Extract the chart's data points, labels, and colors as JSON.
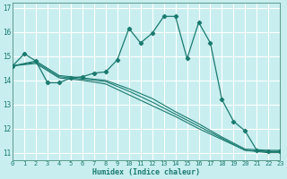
{
  "xlabel": "Humidex (Indice chaleur)",
  "bg_color": "#c8eef0",
  "grid_color": "#ffffff",
  "line_color": "#1a7a6e",
  "xlim": [
    0,
    23
  ],
  "ylim": [
    10.7,
    17.2
  ],
  "xticks": [
    0,
    1,
    2,
    3,
    4,
    5,
    6,
    7,
    8,
    9,
    10,
    11,
    12,
    13,
    14,
    15,
    16,
    17,
    18,
    19,
    20,
    21,
    22,
    23
  ],
  "yticks": [
    11,
    12,
    13,
    14,
    15,
    16,
    17
  ],
  "main_line": {
    "x": [
      0,
      1,
      2,
      3,
      4,
      5,
      6,
      7,
      8,
      9,
      10,
      11,
      12,
      13,
      14,
      15,
      16,
      17,
      18,
      19,
      20,
      21,
      22,
      23
    ],
    "y": [
      14.6,
      15.1,
      14.8,
      13.9,
      13.9,
      14.1,
      14.15,
      14.3,
      14.35,
      14.85,
      16.15,
      15.55,
      15.95,
      16.65,
      16.65,
      14.9,
      16.4,
      15.55,
      13.2,
      12.3,
      11.9,
      11.1,
      11.05,
      11.05
    ]
  },
  "side_lines": [
    {
      "x": [
        0,
        2,
        4,
        6,
        8,
        10,
        12,
        14,
        16,
        18,
        20,
        22,
        23
      ],
      "y": [
        14.6,
        14.7,
        14.1,
        14.0,
        13.85,
        13.4,
        12.95,
        12.5,
        12.0,
        11.55,
        11.1,
        11.0,
        11.0
      ]
    },
    {
      "x": [
        0,
        2,
        4,
        6,
        8,
        10,
        12,
        14,
        16,
        18,
        20,
        22,
        23
      ],
      "y": [
        14.6,
        14.75,
        14.15,
        14.05,
        13.95,
        13.55,
        13.1,
        12.6,
        12.1,
        11.6,
        11.1,
        11.05,
        11.05
      ]
    },
    {
      "x": [
        0,
        2,
        4,
        6,
        8,
        10,
        12,
        14,
        16,
        18,
        20,
        22,
        23
      ],
      "y": [
        14.6,
        14.8,
        14.2,
        14.1,
        14.0,
        13.65,
        13.25,
        12.7,
        12.2,
        11.65,
        11.15,
        11.1,
        11.1
      ]
    }
  ]
}
